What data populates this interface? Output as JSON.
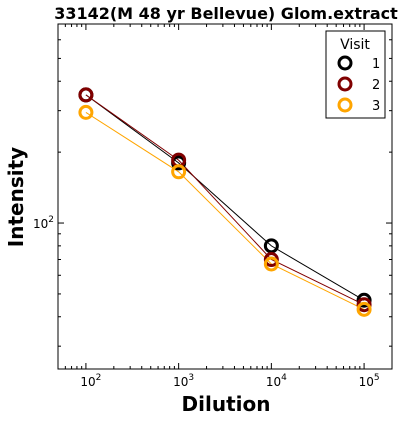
{
  "chart_data": {
    "type": "line",
    "title": "33142(M 48 yr Bellevue) Glom.extract",
    "xlabel": "Dilution",
    "ylabel": "Intensity",
    "x_scale": "log",
    "y_scale": "log",
    "xlim": [
      50,
      200000
    ],
    "ylim": [
      24,
      700
    ],
    "x": [
      100,
      1000,
      10000,
      100000
    ],
    "x_tick_values": [
      100,
      1000,
      10000,
      100000
    ],
    "x_tick_labels": [
      {
        "base": "10",
        "exp": "2"
      },
      {
        "base": "10",
        "exp": "3"
      },
      {
        "base": "10",
        "exp": "4"
      },
      {
        "base": "10",
        "exp": "5"
      }
    ],
    "y_tick_values": [
      100
    ],
    "y_tick_labels": [
      {
        "base": "10",
        "exp": "2"
      }
    ],
    "legend": {
      "title": "Visit",
      "placement": "top-right"
    },
    "series": [
      {
        "name": "1",
        "color": "#000000",
        "values": [
          350,
          180,
          80,
          47
        ]
      },
      {
        "name": "2",
        "color": "#800000",
        "values": [
          350,
          185,
          70,
          45
        ]
      },
      {
        "name": "3",
        "color": "#ffa500",
        "values": [
          295,
          165,
          67,
          43
        ]
      }
    ]
  }
}
